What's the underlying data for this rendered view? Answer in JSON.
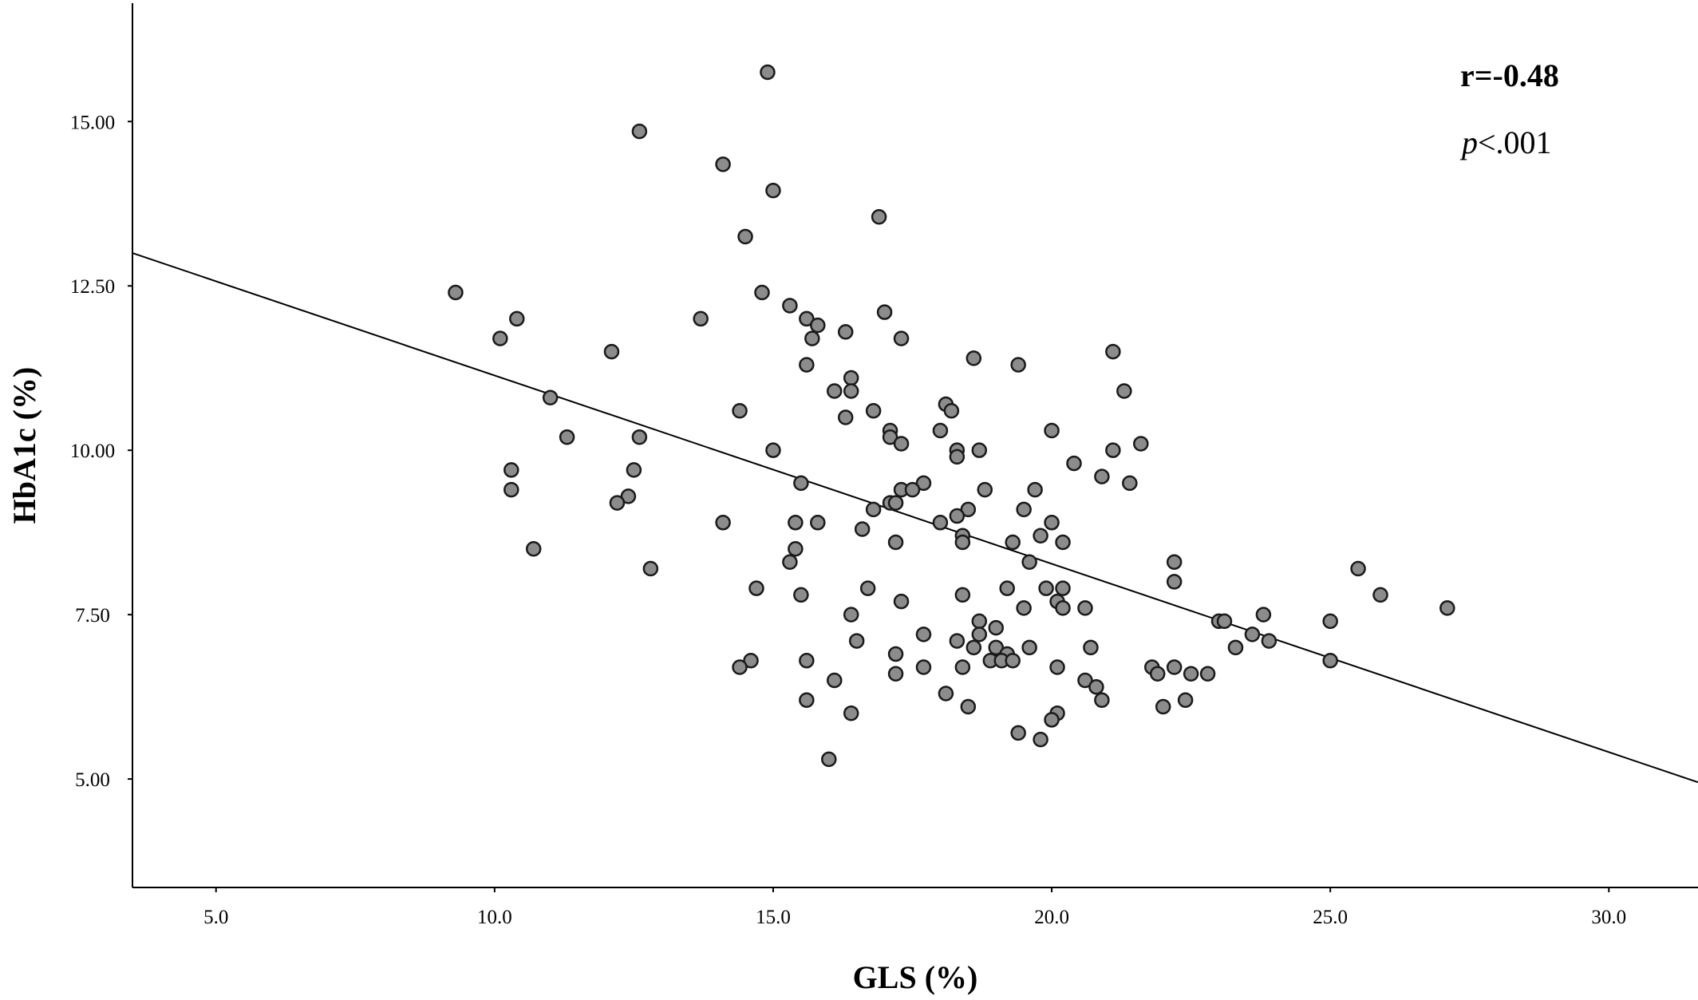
{
  "chart_data": {
    "type": "scatter",
    "xlabel": "GLS (%)",
    "ylabel": "HbA1c (%)",
    "xlim": [
      3.5,
      31.6
    ],
    "ylim": [
      3.35,
      16.8
    ],
    "xticks": [
      {
        "value": 5,
        "label": "5.0"
      },
      {
        "value": 10,
        "label": "10.0"
      },
      {
        "value": 15,
        "label": "15.0"
      },
      {
        "value": 20,
        "label": "20.0"
      },
      {
        "value": 25,
        "label": "25.0"
      },
      {
        "value": 30,
        "label": "30.0"
      }
    ],
    "yticks": [
      {
        "value": 5,
        "label": "5.00"
      },
      {
        "value": 7.5,
        "label": "7.50"
      },
      {
        "value": 10,
        "label": "10.00"
      },
      {
        "value": 12.5,
        "label": "12.50"
      },
      {
        "value": 15,
        "label": "15.00"
      }
    ],
    "annotations": {
      "r_text": "r=-0.48",
      "p_symbol": "p",
      "p_rest": "<.001"
    },
    "fit_line": {
      "x": [
        3.5,
        31.6
      ],
      "y": [
        13.0,
        4.95
      ]
    },
    "points": [
      [
        14.9,
        15.75
      ],
      [
        12.6,
        14.85
      ],
      [
        14.1,
        14.35
      ],
      [
        15.0,
        13.95
      ],
      [
        16.9,
        13.55
      ],
      [
        14.5,
        13.25
      ],
      [
        9.3,
        12.4
      ],
      [
        14.8,
        12.4
      ],
      [
        10.4,
        12.0
      ],
      [
        13.7,
        12.0
      ],
      [
        15.3,
        12.2
      ],
      [
        17.0,
        12.1
      ],
      [
        15.6,
        12.0
      ],
      [
        15.8,
        11.9
      ],
      [
        10.1,
        11.7
      ],
      [
        12.1,
        11.5
      ],
      [
        15.7,
        11.7
      ],
      [
        16.3,
        11.8
      ],
      [
        17.3,
        11.7
      ],
      [
        21.1,
        11.5
      ],
      [
        18.6,
        11.4
      ],
      [
        19.4,
        11.3
      ],
      [
        15.6,
        11.3
      ],
      [
        16.4,
        11.1
      ],
      [
        16.1,
        10.9
      ],
      [
        16.4,
        10.9
      ],
      [
        21.3,
        10.9
      ],
      [
        11.0,
        10.8
      ],
      [
        18.1,
        10.7
      ],
      [
        18.2,
        10.6
      ],
      [
        14.4,
        10.6
      ],
      [
        16.8,
        10.6
      ],
      [
        16.3,
        10.5
      ],
      [
        17.1,
        10.3
      ],
      [
        18.0,
        10.3
      ],
      [
        20.0,
        10.3
      ],
      [
        11.3,
        10.2
      ],
      [
        12.6,
        10.2
      ],
      [
        17.1,
        10.2
      ],
      [
        17.3,
        10.1
      ],
      [
        21.6,
        10.1
      ],
      [
        15.0,
        10.0
      ],
      [
        18.3,
        10.0
      ],
      [
        18.7,
        10.0
      ],
      [
        21.1,
        10.0
      ],
      [
        18.3,
        9.9
      ],
      [
        20.4,
        9.8
      ],
      [
        10.3,
        9.7
      ],
      [
        12.5,
        9.7
      ],
      [
        20.9,
        9.6
      ],
      [
        15.5,
        9.5
      ],
      [
        17.7,
        9.5
      ],
      [
        21.4,
        9.5
      ],
      [
        10.3,
        9.4
      ],
      [
        17.3,
        9.4
      ],
      [
        17.5,
        9.4
      ],
      [
        18.8,
        9.4
      ],
      [
        19.7,
        9.4
      ],
      [
        12.4,
        9.3
      ],
      [
        12.2,
        9.2
      ],
      [
        17.1,
        9.2
      ],
      [
        17.2,
        9.2
      ],
      [
        16.8,
        9.1
      ],
      [
        18.5,
        9.1
      ],
      [
        19.5,
        9.1
      ],
      [
        18.3,
        9.0
      ],
      [
        14.1,
        8.9
      ],
      [
        15.4,
        8.9
      ],
      [
        15.8,
        8.9
      ],
      [
        18.0,
        8.9
      ],
      [
        20.0,
        8.9
      ],
      [
        16.6,
        8.8
      ],
      [
        18.4,
        8.7
      ],
      [
        19.8,
        8.7
      ],
      [
        18.4,
        8.6
      ],
      [
        17.2,
        8.6
      ],
      [
        19.3,
        8.6
      ],
      [
        20.2,
        8.6
      ],
      [
        10.7,
        8.5
      ],
      [
        15.4,
        8.5
      ],
      [
        15.3,
        8.3
      ],
      [
        19.6,
        8.3
      ],
      [
        22.2,
        8.3
      ],
      [
        12.8,
        8.2
      ],
      [
        25.5,
        8.2
      ],
      [
        22.2,
        8.0
      ],
      [
        14.7,
        7.9
      ],
      [
        16.7,
        7.9
      ],
      [
        19.2,
        7.9
      ],
      [
        19.9,
        7.9
      ],
      [
        20.2,
        7.9
      ],
      [
        15.5,
        7.8
      ],
      [
        18.4,
        7.8
      ],
      [
        25.9,
        7.8
      ],
      [
        17.3,
        7.7
      ],
      [
        20.1,
        7.7
      ],
      [
        19.5,
        7.6
      ],
      [
        20.2,
        7.6
      ],
      [
        20.6,
        7.6
      ],
      [
        27.1,
        7.6
      ],
      [
        16.4,
        7.5
      ],
      [
        23.8,
        7.5
      ],
      [
        18.7,
        7.4
      ],
      [
        23.0,
        7.4
      ],
      [
        23.1,
        7.4
      ],
      [
        25.0,
        7.4
      ],
      [
        19.0,
        7.3
      ],
      [
        17.7,
        7.2
      ],
      [
        18.7,
        7.2
      ],
      [
        23.6,
        7.2
      ],
      [
        16.5,
        7.1
      ],
      [
        18.3,
        7.1
      ],
      [
        23.9,
        7.1
      ],
      [
        18.6,
        7.0
      ],
      [
        19.0,
        7.0
      ],
      [
        19.6,
        7.0
      ],
      [
        20.7,
        7.0
      ],
      [
        23.3,
        7.0
      ],
      [
        17.2,
        6.9
      ],
      [
        19.2,
        6.9
      ],
      [
        14.6,
        6.8
      ],
      [
        15.6,
        6.8
      ],
      [
        18.9,
        6.8
      ],
      [
        19.1,
        6.8
      ],
      [
        19.3,
        6.8
      ],
      [
        25.0,
        6.8
      ],
      [
        14.4,
        6.7
      ],
      [
        17.7,
        6.7
      ],
      [
        18.4,
        6.7
      ],
      [
        20.1,
        6.7
      ],
      [
        21.8,
        6.7
      ],
      [
        22.2,
        6.7
      ],
      [
        17.2,
        6.6
      ],
      [
        21.9,
        6.6
      ],
      [
        22.5,
        6.6
      ],
      [
        22.8,
        6.6
      ],
      [
        16.1,
        6.5
      ],
      [
        20.6,
        6.5
      ],
      [
        20.8,
        6.4
      ],
      [
        18.1,
        6.3
      ],
      [
        15.6,
        6.2
      ],
      [
        20.9,
        6.2
      ],
      [
        22.4,
        6.2
      ],
      [
        18.5,
        6.1
      ],
      [
        22.0,
        6.1
      ],
      [
        16.4,
        6.0
      ],
      [
        20.1,
        6.0
      ],
      [
        20.0,
        5.9
      ],
      [
        19.4,
        5.7
      ],
      [
        19.8,
        5.6
      ],
      [
        16.0,
        5.3
      ]
    ]
  }
}
